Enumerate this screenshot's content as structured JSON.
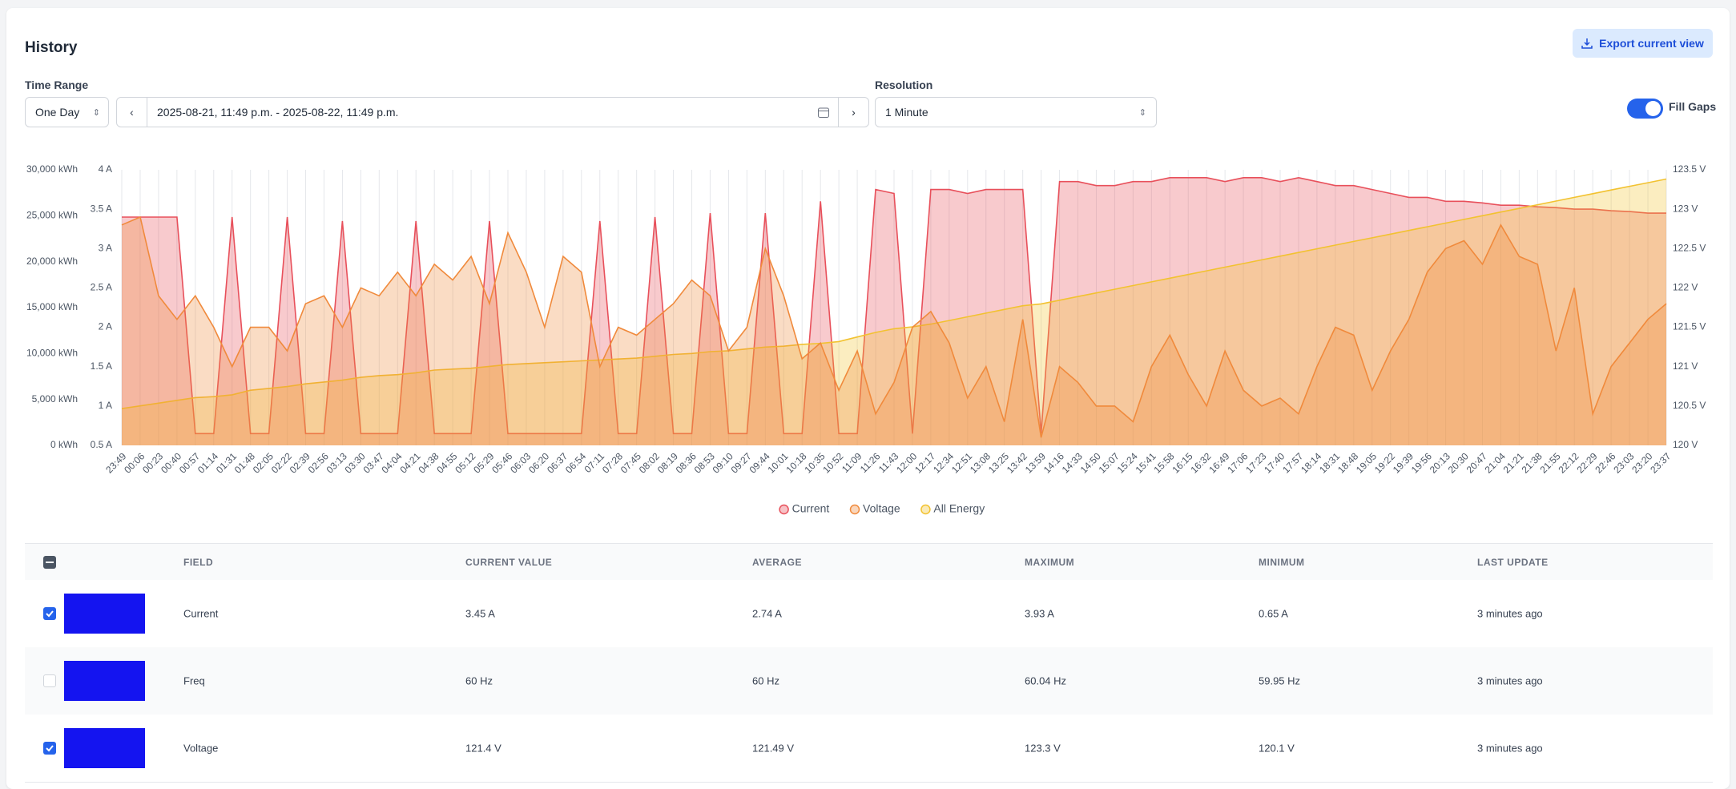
{
  "header": {
    "title": "History",
    "export": "Export current view"
  },
  "controls": {
    "time_range_label": "Time Range",
    "time_range": "One Day",
    "date_range": "2025-08-21, 11:49 p.m. - 2025-08-22, 11:49 p.m.",
    "resolution_label": "Resolution",
    "resolution": "1 Minute",
    "fill_gaps": "Fill Gaps"
  },
  "chart_data": {
    "type": "area",
    "categories": [
      "23:49",
      "00:06",
      "00:23",
      "00:40",
      "00:57",
      "01:14",
      "01:31",
      "01:48",
      "02:05",
      "02:22",
      "02:39",
      "02:56",
      "03:13",
      "03:30",
      "03:47",
      "04:04",
      "04:21",
      "04:38",
      "04:55",
      "05:12",
      "05:29",
      "05:46",
      "06:03",
      "06:20",
      "06:37",
      "06:54",
      "07:11",
      "07:28",
      "07:45",
      "08:02",
      "08:19",
      "08:36",
      "08:53",
      "09:10",
      "09:27",
      "09:44",
      "10:01",
      "10:18",
      "10:35",
      "10:52",
      "11:09",
      "11:26",
      "11:43",
      "12:00",
      "12:17",
      "12:34",
      "12:51",
      "13:08",
      "13:25",
      "13:42",
      "13:59",
      "14:16",
      "14:33",
      "14:50",
      "15:07",
      "15:24",
      "15:41",
      "15:58",
      "16:15",
      "16:32",
      "16:49",
      "17:06",
      "17:23",
      "17:40",
      "17:57",
      "18:14",
      "18:31",
      "18:48",
      "19:05",
      "19:22",
      "19:39",
      "19:56",
      "20:13",
      "20:30",
      "20:47",
      "21:04",
      "21:21",
      "21:38",
      "21:55",
      "22:12",
      "22:29",
      "22:46",
      "23:03",
      "23:20",
      "23:37"
    ],
    "series": [
      {
        "name": "Current",
        "color": "#e8505b",
        "axis": "y",
        "values": [
          3.4,
          3.4,
          3.4,
          3.4,
          0.65,
          0.65,
          3.4,
          0.65,
          0.65,
          3.4,
          0.65,
          0.65,
          3.35,
          0.65,
          0.65,
          0.65,
          3.35,
          0.65,
          0.65,
          0.65,
          3.35,
          0.65,
          0.65,
          0.65,
          0.65,
          0.65,
          3.35,
          0.65,
          0.65,
          3.4,
          0.65,
          0.65,
          3.45,
          0.65,
          0.65,
          3.45,
          0.65,
          0.65,
          3.6,
          0.65,
          0.65,
          3.75,
          3.7,
          0.65,
          3.75,
          3.75,
          3.7,
          3.75,
          3.75,
          3.75,
          0.65,
          3.85,
          3.85,
          3.8,
          3.8,
          3.85,
          3.85,
          3.9,
          3.9,
          3.9,
          3.85,
          3.9,
          3.9,
          3.85,
          3.9,
          3.85,
          3.8,
          3.8,
          3.75,
          3.7,
          3.65,
          3.65,
          3.6,
          3.6,
          3.58,
          3.55,
          3.55,
          3.53,
          3.52,
          3.5,
          3.5,
          3.48,
          3.47,
          3.45,
          3.45
        ]
      },
      {
        "name": "Voltage",
        "color": "#f08a3c",
        "axis": "y2",
        "values": [
          122.8,
          122.9,
          121.9,
          121.6,
          121.9,
          121.5,
          121,
          121.5,
          121.5,
          121.2,
          121.8,
          121.9,
          121.5,
          122,
          121.9,
          122.2,
          121.9,
          122.3,
          122.1,
          122.4,
          121.8,
          122.7,
          122.2,
          121.5,
          122.4,
          122.2,
          121,
          121.5,
          121.4,
          121.6,
          121.8,
          122.1,
          121.9,
          121.2,
          121.5,
          122.5,
          121.9,
          121.1,
          121.3,
          120.7,
          121.2,
          120.4,
          120.8,
          121.5,
          121.7,
          121.3,
          120.6,
          121,
          120.3,
          121.6,
          120.1,
          121,
          120.8,
          120.5,
          120.5,
          120.3,
          121,
          121.4,
          120.9,
          120.5,
          121.2,
          120.7,
          120.5,
          120.6,
          120.4,
          121,
          121.5,
          121.4,
          120.7,
          121.2,
          121.6,
          122.2,
          122.5,
          122.6,
          122.3,
          122.8,
          122.4,
          122.3,
          121.2,
          122,
          120.4,
          121,
          121.3,
          121.6,
          121.8
        ]
      },
      {
        "name": "All Energy",
        "color": "#f2c230",
        "axis": "y3",
        "values": [
          4000,
          4300,
          4600,
          4900,
          5200,
          5300,
          5500,
          6000,
          6200,
          6400,
          6700,
          6900,
          7100,
          7400,
          7600,
          7700,
          7900,
          8200,
          8300,
          8400,
          8600,
          8800,
          8900,
          9000,
          9100,
          9200,
          9300,
          9400,
          9500,
          9700,
          9900,
          10000,
          10200,
          10300,
          10500,
          10700,
          10800,
          11000,
          11100,
          11300,
          11800,
          12300,
          12700,
          12900,
          13200,
          13600,
          14000,
          14400,
          14800,
          15200,
          15400,
          15800,
          16200,
          16600,
          17000,
          17400,
          17800,
          18200,
          18600,
          19000,
          19400,
          19800,
          20200,
          20600,
          21000,
          21400,
          21800,
          22200,
          22600,
          23000,
          23400,
          23800,
          24200,
          24600,
          25000,
          25400,
          25800,
          26200,
          26600,
          27000,
          27400,
          27800,
          28200,
          28600,
          29000
        ]
      }
    ],
    "ylim": [
      0.5,
      4
    ],
    "yticks": [
      {
        "value": 0.5,
        "label": "0.5 A"
      },
      {
        "value": 1,
        "label": "1 A"
      },
      {
        "value": 1.5,
        "label": "1.5 A"
      },
      {
        "value": 2,
        "label": "2 A"
      },
      {
        "value": 2.5,
        "label": "2.5 A"
      },
      {
        "value": 3,
        "label": "3 A"
      },
      {
        "value": 3.5,
        "label": "3.5 A"
      },
      {
        "value": 4,
        "label": "4 A"
      }
    ],
    "y2lim": [
      120,
      123.5
    ],
    "y2ticks": [
      {
        "value": 120,
        "label": "120 V"
      },
      {
        "value": 120.5,
        "label": "120.5 V"
      },
      {
        "value": 121,
        "label": "121 V"
      },
      {
        "value": 121.5,
        "label": "121.5 V"
      },
      {
        "value": 122,
        "label": "122 V"
      },
      {
        "value": 122.5,
        "label": "122.5 V"
      },
      {
        "value": 123,
        "label": "123 V"
      },
      {
        "value": 123.5,
        "label": "123.5 V"
      }
    ],
    "y3lim": [
      0,
      30000
    ],
    "y3ticks": [
      {
        "value": 0,
        "label": "0 kWh"
      },
      {
        "value": 5000,
        "label": "5,000 kWh"
      },
      {
        "value": 10000,
        "label": "10,000 kWh"
      },
      {
        "value": 15000,
        "label": "15,000 kWh"
      },
      {
        "value": 20000,
        "label": "20,000 kWh"
      },
      {
        "value": 25000,
        "label": "25,000 kWh"
      },
      {
        "value": 30000,
        "label": "30,000 kWh"
      }
    ],
    "grid": true,
    "legend": "bottom"
  },
  "table": {
    "columns": [
      "FIELD",
      "CURRENT VALUE",
      "AVERAGE",
      "MAXIMUM",
      "MINIMUM",
      "LAST UPDATE"
    ],
    "rows": [
      {
        "checked": true,
        "cells": [
          "Current",
          "3.45 A",
          "2.74 A",
          "3.93 A",
          "0.65 A",
          "3 minutes ago"
        ]
      },
      {
        "checked": false,
        "cells": [
          "Freq",
          "60 Hz",
          "60 Hz",
          "60.04 Hz",
          "59.95 Hz",
          "3 minutes ago"
        ]
      },
      {
        "checked": true,
        "cells": [
          "Voltage",
          "121.4 V",
          "121.49 V",
          "123.3 V",
          "120.1 V",
          "3 minutes ago"
        ]
      }
    ]
  }
}
